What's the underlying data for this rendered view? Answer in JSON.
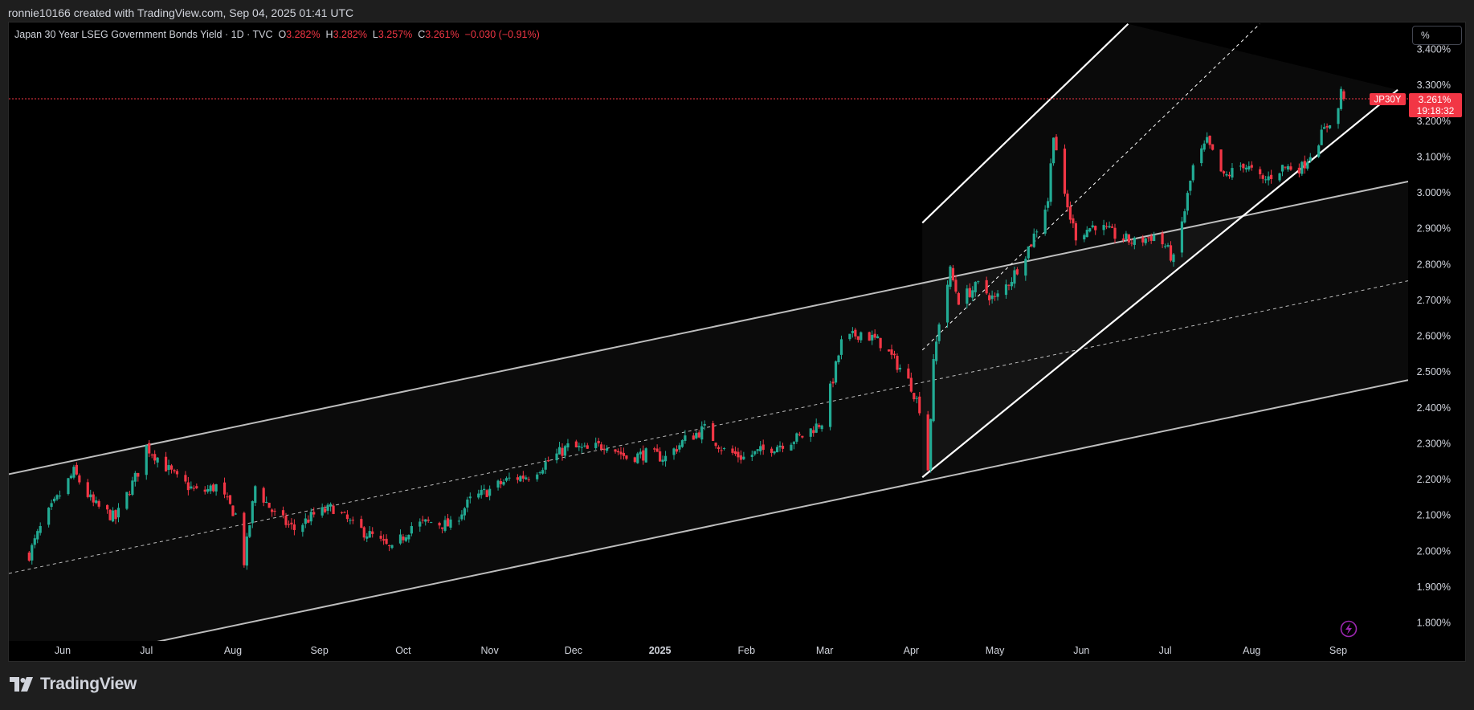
{
  "header": {
    "attribution": "ronnie10166 created with TradingView.com, Sep 04, 2025 01:41 UTC"
  },
  "legend": {
    "title": "Japan 30 Year LSEG Government Bonds Yield · 1D · TVC",
    "open_label": "O",
    "open": "3.282%",
    "high_label": "H",
    "high": "3.282%",
    "low_label": "L",
    "low": "3.257%",
    "close_label": "C",
    "close": "3.261%",
    "change": "−0.030 (−0.91%)"
  },
  "scale_button": "%",
  "price_tag": {
    "symbol": "JP30Y",
    "price": "3.261%",
    "countdown": "19:18:32",
    "color": "#f23645"
  },
  "footer": {
    "brand": "TradingView"
  },
  "colors": {
    "background": "#000000",
    "up": "#22ab94",
    "down": "#f23645",
    "channel_line": "#bdbdbd",
    "text": "#d1d4dc"
  },
  "chart_data": {
    "type": "candlestick",
    "y_axis": {
      "min": 1.75,
      "max": 3.44,
      "ticks": [
        "3.400%",
        "3.300%",
        "3.200%",
        "3.100%",
        "3.000%",
        "2.900%",
        "2.800%",
        "2.700%",
        "2.600%",
        "2.500%",
        "2.400%",
        "2.300%",
        "2.200%",
        "2.100%",
        "2.000%",
        "1.900%",
        "1.800%"
      ],
      "tick_values": [
        3.4,
        3.3,
        3.2,
        3.1,
        3.0,
        2.9,
        2.8,
        2.7,
        2.6,
        2.5,
        2.4,
        2.3,
        2.2,
        2.1,
        2.0,
        1.9,
        1.8
      ],
      "unit": "%"
    },
    "x_axis": {
      "labels": [
        "Jun",
        "Jul",
        "Aug",
        "Sep",
        "Oct",
        "Nov",
        "Dec",
        "2025",
        "Feb",
        "Mar",
        "Apr",
        "May",
        "Jun",
        "Jul",
        "Aug",
        "Sep"
      ],
      "dates": [
        "2024-06-01",
        "2024-07-01",
        "2024-08-01",
        "2024-09-01",
        "2024-10-01",
        "2024-11-01",
        "2024-12-01",
        "2025-01-01",
        "2025-02-01",
        "2025-03-01",
        "2025-04-01",
        "2025-05-01",
        "2025-06-01",
        "2025-07-01",
        "2025-08-01",
        "2025-09-01"
      ],
      "bold": [
        false,
        false,
        false,
        false,
        false,
        false,
        false,
        true,
        false,
        false,
        false,
        false,
        false,
        false,
        false,
        false
      ]
    },
    "last_price": 3.261,
    "close_path": [
      [
        "2024-05-20",
        1.99
      ],
      [
        "2024-05-25",
        2.08
      ],
      [
        "2024-06-05",
        2.22
      ],
      [
        "2024-06-12",
        2.13
      ],
      [
        "2024-06-20",
        2.09
      ],
      [
        "2024-06-28",
        2.22
      ],
      [
        "2024-07-01",
        2.29
      ],
      [
        "2024-07-05",
        2.26
      ],
      [
        "2024-07-12",
        2.2
      ],
      [
        "2024-07-20",
        2.16
      ],
      [
        "2024-07-26",
        2.18
      ],
      [
        "2024-08-02",
        2.1
      ],
      [
        "2024-08-05",
        1.97
      ],
      [
        "2024-08-09",
        2.18
      ],
      [
        "2024-08-16",
        2.1
      ],
      [
        "2024-08-23",
        2.06
      ],
      [
        "2024-08-30",
        2.1
      ],
      [
        "2024-09-06",
        2.12
      ],
      [
        "2024-09-13",
        2.07
      ],
      [
        "2024-09-20",
        2.04
      ],
      [
        "2024-09-27",
        2.0
      ],
      [
        "2024-10-04",
        2.07
      ],
      [
        "2024-10-11",
        2.08
      ],
      [
        "2024-10-18",
        2.07
      ],
      [
        "2024-10-25",
        2.14
      ],
      [
        "2024-11-01",
        2.17
      ],
      [
        "2024-11-08",
        2.2
      ],
      [
        "2024-11-15",
        2.21
      ],
      [
        "2024-11-22",
        2.25
      ],
      [
        "2024-11-29",
        2.29
      ],
      [
        "2024-12-06",
        2.28
      ],
      [
        "2024-12-13",
        2.3
      ],
      [
        "2024-12-20",
        2.26
      ],
      [
        "2024-12-27",
        2.27
      ],
      [
        "2025-01-03",
        2.26
      ],
      [
        "2025-01-10",
        2.31
      ],
      [
        "2025-01-17",
        2.34
      ],
      [
        "2025-01-24",
        2.28
      ],
      [
        "2025-01-31",
        2.26
      ],
      [
        "2025-02-07",
        2.28
      ],
      [
        "2025-02-14",
        2.3
      ],
      [
        "2025-02-21",
        2.32
      ],
      [
        "2025-02-28",
        2.36
      ],
      [
        "2025-03-04",
        2.48
      ],
      [
        "2025-03-07",
        2.58
      ],
      [
        "2025-03-14",
        2.61
      ],
      [
        "2025-03-21",
        2.58
      ],
      [
        "2025-03-28",
        2.51
      ],
      [
        "2025-04-01",
        2.46
      ],
      [
        "2025-04-04",
        2.4
      ],
      [
        "2025-04-07",
        2.23
      ],
      [
        "2025-04-09",
        2.52
      ],
      [
        "2025-04-11",
        2.64
      ],
      [
        "2025-04-15",
        2.78
      ],
      [
        "2025-04-18",
        2.7
      ],
      [
        "2025-04-25",
        2.74
      ],
      [
        "2025-05-01",
        2.7
      ],
      [
        "2025-05-07",
        2.76
      ],
      [
        "2025-05-14",
        2.86
      ],
      [
        "2025-05-20",
        2.98
      ],
      [
        "2025-05-22",
        3.17
      ],
      [
        "2025-05-26",
        2.98
      ],
      [
        "2025-05-30",
        2.88
      ],
      [
        "2025-06-06",
        2.91
      ],
      [
        "2025-06-13",
        2.88
      ],
      [
        "2025-06-20",
        2.86
      ],
      [
        "2025-06-27",
        2.88
      ],
      [
        "2025-07-01",
        2.85
      ],
      [
        "2025-07-04",
        2.81
      ],
      [
        "2025-07-08",
        2.95
      ],
      [
        "2025-07-11",
        3.07
      ],
      [
        "2025-07-16",
        3.14
      ],
      [
        "2025-07-22",
        3.04
      ],
      [
        "2025-07-29",
        3.08
      ],
      [
        "2025-08-05",
        3.03
      ],
      [
        "2025-08-12",
        3.07
      ],
      [
        "2025-08-19",
        3.07
      ],
      [
        "2025-08-26",
        3.16
      ],
      [
        "2025-08-29",
        3.2
      ],
      [
        "2025-09-01",
        3.23
      ],
      [
        "2025-09-02",
        3.29
      ],
      [
        "2025-09-03",
        3.261
      ]
    ]
  }
}
